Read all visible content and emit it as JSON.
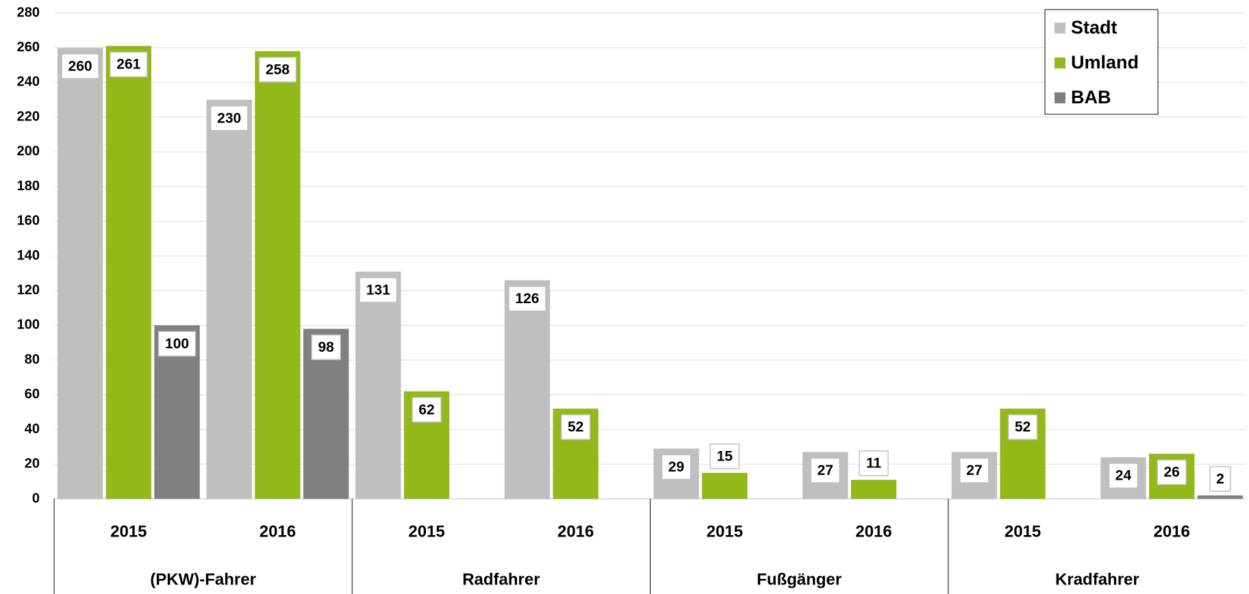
{
  "chart_data": {
    "type": "bar",
    "categories": [
      "2015",
      "2016",
      "2015",
      "2016",
      "2015",
      "2016",
      "2015",
      "2016"
    ],
    "groups": [
      "(PKW)-Fahrer",
      "Radfahrer",
      "Fußgänger",
      "Kradfahrer"
    ],
    "series": [
      {
        "name": "Stadt",
        "color": "#bfbfbf",
        "values": [
          260,
          230,
          131,
          126,
          29,
          27,
          27,
          24
        ]
      },
      {
        "name": "Umland",
        "color": "#92b81a",
        "values": [
          261,
          258,
          62,
          52,
          15,
          11,
          52,
          26
        ]
      },
      {
        "name": "BAB",
        "color": "#808080",
        "values": [
          100,
          98,
          null,
          null,
          null,
          null,
          null,
          2
        ]
      }
    ],
    "ylim": [
      0,
      280
    ],
    "yticks": [
      0,
      20,
      40,
      60,
      80,
      100,
      120,
      140,
      160,
      180,
      200,
      220,
      240,
      260,
      280
    ],
    "grid": true,
    "legend": "upper right"
  }
}
